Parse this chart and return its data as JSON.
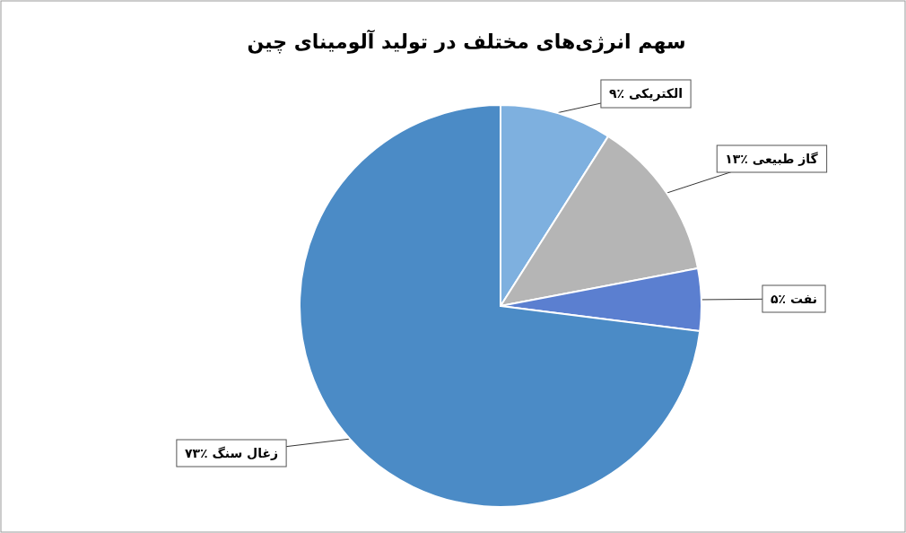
{
  "chart_data": {
    "type": "pie",
    "title": "سهم انرژی‌های مختلف در تولید آلومینای چین",
    "categories": [
      "الکتریکی",
      "گاز طبیعی",
      "نفت",
      "زغال سنگ"
    ],
    "values": [
      9,
      13,
      5,
      73
    ],
    "value_labels": [
      "٪۹",
      "٪۱۳",
      "٪۵",
      "٪۷۳"
    ],
    "colors": [
      "#7eb0df",
      "#b5b5b5",
      "#5b7fd0",
      "#4b8bc6"
    ]
  }
}
